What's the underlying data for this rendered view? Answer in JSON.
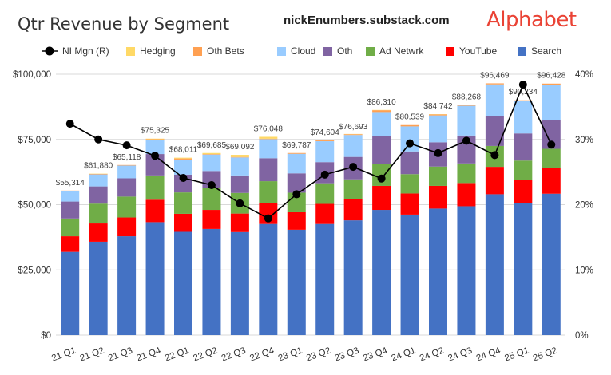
{
  "header": {
    "title": "Qtr Revenue by Segment",
    "source": "nickEnumbers.substack.com",
    "logo_text": "Alphabet"
  },
  "chart_data": {
    "type": "bar",
    "stacked": true,
    "title": "Qtr Revenue by Segment",
    "categories": [
      "21 Q1",
      "21 Q2",
      "21 Q3",
      "21 Q4",
      "22 Q1",
      "22 Q2",
      "22 Q3",
      "22 Q4",
      "23 Q1",
      "23 Q2",
      "23 Q3",
      "23 Q4",
      "24 Q1",
      "24 Q2",
      "24 Q3",
      "24 Q4",
      "25 Q1",
      "25 Q2"
    ],
    "series": [
      {
        "name": "Search",
        "color": "#4472c4",
        "values": [
          31900,
          35800,
          37900,
          43300,
          39600,
          40700,
          39500,
          42600,
          40400,
          42600,
          44000,
          48000,
          46200,
          48500,
          49400,
          54000,
          50700,
          54200
        ]
      },
      {
        "name": "YouTube",
        "color": "#ff0000",
        "values": [
          6000,
          7000,
          7200,
          8600,
          6900,
          7300,
          7100,
          7900,
          6700,
          7700,
          8000,
          9200,
          8100,
          8700,
          8900,
          10500,
          8900,
          9800
        ]
      },
      {
        "name": "Ad Netwrk",
        "color": "#70ad47",
        "values": [
          6800,
          7600,
          8000,
          9300,
          8200,
          8300,
          7900,
          8500,
          7500,
          7900,
          7700,
          8300,
          7400,
          7400,
          7500,
          8000,
          7300,
          7400
        ]
      },
      {
        "name": "Oth",
        "color": "#8064a2",
        "values": [
          6500,
          6600,
          7000,
          8200,
          6800,
          6600,
          6700,
          8800,
          7400,
          8100,
          8600,
          10800,
          8700,
          9300,
          10700,
          11600,
          10400,
          11000
        ]
      },
      {
        "name": "Cloud",
        "color": "#99ccff",
        "values": [
          4000,
          4600,
          4900,
          5500,
          5800,
          6300,
          6900,
          7300,
          7500,
          8000,
          8400,
          9200,
          9600,
          10300,
          11400,
          12000,
          12300,
          13600
        ]
      },
      {
        "name": "Oth Bets",
        "color": "#ffa052",
        "values": [
          200,
          200,
          200,
          200,
          400,
          200,
          200,
          200,
          300,
          300,
          300,
          700,
          500,
          400,
          400,
          400,
          400,
          400
        ]
      },
      {
        "name": "Hedging",
        "color": "#ffd966",
        "values": [
          0,
          100,
          0,
          200,
          300,
          400,
          800,
          700,
          0,
          0,
          100,
          100,
          0,
          100,
          0,
          0,
          0,
          0
        ]
      }
    ],
    "totals": [
      55314,
      61880,
      65118,
      75325,
      68011,
      69685,
      69092,
      76048,
      69787,
      74604,
      76693,
      86310,
      80539,
      84742,
      88268,
      96469,
      90234,
      96428
    ],
    "total_labels": [
      "$55,314",
      "$61,880",
      "$65,118",
      "$75,325",
      "$68,011",
      "$69,685",
      "$69,092",
      "$76,048",
      "$69,787",
      "$74,604",
      "$76,693",
      "$86,310",
      "$80,539",
      "$84,742",
      "$88,268",
      "$96,469",
      "$90,234",
      "$96,428"
    ],
    "line_series": {
      "name": "NI Mgn (R)",
      "color": "#000000",
      "values": [
        32.4,
        30.0,
        29.1,
        27.5,
        24.1,
        23.0,
        20.2,
        17.9,
        21.6,
        24.6,
        25.8,
        24.0,
        29.4,
        27.9,
        29.8,
        27.6,
        38.4,
        29.2
      ]
    },
    "legend_order": [
      "NI Mgn (R)",
      "Hedging",
      "Oth Bets",
      "Cloud",
      "Oth",
      "Ad Netwrk",
      "YouTube",
      "Search"
    ],
    "ylim": [
      0,
      100000
    ],
    "y_ticks": [
      "$0",
      "$25,000",
      "$50,000",
      "$75,000",
      "$100,000"
    ],
    "y2lim": [
      0,
      40
    ],
    "y2_ticks": [
      "0%",
      "10%",
      "20%",
      "30%",
      "40%"
    ],
    "grid": true,
    "legend_position": "top",
    "xlabel": "",
    "ylabel": ""
  }
}
